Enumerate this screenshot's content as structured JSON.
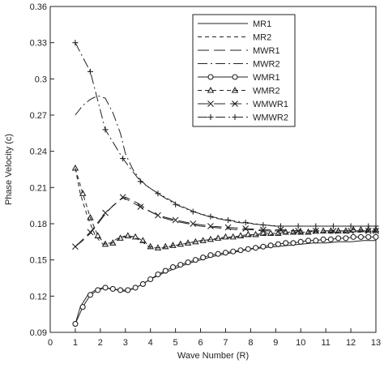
{
  "chart_data": {
    "type": "line",
    "title": "",
    "xlabel": "Wave Number (R)",
    "ylabel": "Phase Velocity (c)",
    "xlim": [
      0,
      13
    ],
    "ylim": [
      0.09,
      0.36
    ],
    "x_ticks": [
      "0",
      "1",
      "2",
      "3",
      "4",
      "5",
      "6",
      "7",
      "8",
      "9",
      "10",
      "11",
      "12",
      "13"
    ],
    "y_ticks": [
      "0.09",
      "0.12",
      "0.15",
      "0.18",
      "0.21",
      "0.24",
      "0.27",
      "0.3",
      "0.33",
      "0.36"
    ],
    "grid": false,
    "legend_position": "top-right",
    "series": [
      {
        "name": "MR1",
        "style": "solid",
        "marker": "none",
        "color": "#222222",
        "x": [
          1.0,
          1.2,
          1.5,
          1.8,
          2.1,
          2.4,
          2.7,
          3.0,
          3.3,
          3.6,
          4.0,
          4.5,
          5.0,
          5.5,
          6.0,
          6.5,
          7.0,
          7.5,
          8.0,
          8.5,
          9.0,
          9.5,
          10.0,
          10.5,
          11.0,
          11.5,
          12.0,
          12.5,
          13.0
        ],
        "y": [
          0.097,
          0.111,
          0.121,
          0.125,
          0.127,
          0.126,
          0.125,
          0.124,
          0.126,
          0.129,
          0.134,
          0.139,
          0.143,
          0.147,
          0.15,
          0.153,
          0.155,
          0.157,
          0.159,
          0.16,
          0.161,
          0.162,
          0.163,
          0.164,
          0.164,
          0.165,
          0.165,
          0.166,
          0.166
        ]
      },
      {
        "name": "MR2",
        "style": "dashed",
        "marker": "none",
        "color": "#222222",
        "x": [
          1.0,
          1.2,
          1.5,
          1.8,
          2.1,
          2.4,
          2.7,
          3.0,
          3.3,
          3.6,
          4.0,
          4.5,
          5.0,
          5.5,
          6.0,
          6.5,
          7.0,
          7.5,
          8.0,
          8.5,
          9.0,
          9.5,
          10.0,
          10.5,
          11.0,
          11.5,
          12.0,
          12.5,
          13.0
        ],
        "y": [
          0.226,
          0.205,
          0.185,
          0.17,
          0.163,
          0.164,
          0.168,
          0.17,
          0.169,
          0.166,
          0.16,
          0.16,
          0.162,
          0.164,
          0.166,
          0.167,
          0.168,
          0.169,
          0.17,
          0.171,
          0.171,
          0.172,
          0.172,
          0.172,
          0.173,
          0.173,
          0.173,
          0.173,
          0.173
        ]
      },
      {
        "name": "MWR1",
        "style": "long-dash",
        "marker": "none",
        "color": "#222222",
        "x": [
          1.0,
          1.3,
          1.6,
          1.9,
          2.2,
          2.5,
          2.8,
          3.0,
          3.5,
          4.0,
          4.5,
          5.0,
          5.5,
          6.0,
          6.5,
          7.0,
          7.5,
          8.0,
          8.5,
          9.0,
          9.5,
          10.0,
          10.5,
          11.0,
          11.5,
          12.0,
          12.5,
          13.0
        ],
        "y": [
          0.161,
          0.166,
          0.172,
          0.18,
          0.188,
          0.195,
          0.2,
          0.202,
          0.197,
          0.19,
          0.185,
          0.182,
          0.18,
          0.178,
          0.177,
          0.176,
          0.175,
          0.175,
          0.174,
          0.174,
          0.174,
          0.174,
          0.174,
          0.174,
          0.174,
          0.174,
          0.174,
          0.174
        ]
      },
      {
        "name": "MWR2",
        "style": "dash-dot",
        "marker": "none",
        "color": "#222222",
        "x": [
          1.0,
          1.3,
          1.6,
          1.9,
          2.2,
          2.5,
          2.8,
          3.0,
          3.3,
          3.6,
          4.0,
          4.5,
          5.0,
          5.5,
          6.0,
          6.5,
          7.0,
          7.5,
          8.0,
          8.5,
          9.0,
          9.5,
          10.0,
          10.5,
          11.0,
          11.5,
          12.0,
          12.5,
          13.0
        ],
        "y": [
          0.27,
          0.278,
          0.283,
          0.286,
          0.284,
          0.272,
          0.255,
          0.238,
          0.225,
          0.216,
          0.209,
          0.203,
          0.197,
          0.192,
          0.188,
          0.185,
          0.183,
          0.181,
          0.18,
          0.179,
          0.178,
          0.178,
          0.178,
          0.178,
          0.178,
          0.178,
          0.178,
          0.178,
          0.178
        ]
      },
      {
        "name": "WMR1",
        "style": "solid",
        "marker": "circle",
        "color": "#222222",
        "x": [
          1.0,
          1.3,
          1.6,
          1.9,
          2.2,
          2.5,
          2.8,
          3.1,
          3.4,
          3.7,
          4.0,
          4.3,
          4.6,
          4.9,
          5.2,
          5.5,
          5.8,
          6.1,
          6.4,
          6.7,
          7.0,
          7.3,
          7.6,
          7.9,
          8.2,
          8.5,
          8.8,
          9.1,
          9.4,
          9.7,
          10.0,
          10.3,
          10.6,
          10.9,
          11.2,
          11.5,
          11.8,
          12.1,
          12.4,
          12.7,
          13.0
        ],
        "y": [
          0.097,
          0.111,
          0.121,
          0.125,
          0.127,
          0.126,
          0.125,
          0.125,
          0.127,
          0.13,
          0.134,
          0.138,
          0.141,
          0.144,
          0.146,
          0.148,
          0.15,
          0.152,
          0.154,
          0.155,
          0.156,
          0.157,
          0.158,
          0.159,
          0.16,
          0.161,
          0.162,
          0.163,
          0.164,
          0.164,
          0.165,
          0.166,
          0.166,
          0.167,
          0.167,
          0.168,
          0.168,
          0.169,
          0.169,
          0.169,
          0.169
        ]
      },
      {
        "name": "WMR2",
        "style": "dashed",
        "marker": "triangle",
        "color": "#222222",
        "x": [
          1.0,
          1.3,
          1.6,
          1.9,
          2.2,
          2.5,
          2.8,
          3.1,
          3.4,
          3.7,
          4.0,
          4.3,
          4.6,
          4.9,
          5.2,
          5.5,
          5.8,
          6.1,
          6.4,
          6.7,
          7.0,
          7.3,
          7.6,
          7.9,
          8.2,
          8.5,
          8.8,
          9.1,
          9.4,
          9.7,
          10.0,
          10.3,
          10.6,
          10.9,
          11.2,
          11.5,
          11.8,
          12.1,
          12.4,
          12.7,
          13.0
        ],
        "y": [
          0.226,
          0.205,
          0.185,
          0.17,
          0.163,
          0.164,
          0.168,
          0.17,
          0.169,
          0.166,
          0.161,
          0.16,
          0.161,
          0.162,
          0.163,
          0.164,
          0.165,
          0.166,
          0.167,
          0.168,
          0.169,
          0.169,
          0.17,
          0.171,
          0.171,
          0.172,
          0.172,
          0.172,
          0.173,
          0.173,
          0.173,
          0.173,
          0.174,
          0.174,
          0.174,
          0.174,
          0.174,
          0.175,
          0.175,
          0.175,
          0.175
        ]
      },
      {
        "name": "WMWR1",
        "style": "long-dash",
        "marker": "x",
        "color": "#222222",
        "x": [
          1.0,
          1.6,
          2.2,
          2.9,
          3.6,
          4.3,
          5.0,
          5.7,
          6.4,
          7.1,
          7.8,
          8.5,
          9.2,
          9.9,
          10.6,
          11.3,
          12.0,
          12.7,
          13.0
        ],
        "y": [
          0.161,
          0.173,
          0.189,
          0.202,
          0.194,
          0.187,
          0.183,
          0.18,
          0.178,
          0.177,
          0.176,
          0.175,
          0.175,
          0.174,
          0.174,
          0.174,
          0.174,
          0.174,
          0.174
        ]
      },
      {
        "name": "WMWR2",
        "style": "dash-dot",
        "marker": "plus",
        "color": "#222222",
        "x": [
          1.0,
          1.6,
          2.2,
          2.9,
          3.6,
          4.3,
          5.0,
          5.7,
          6.4,
          7.1,
          7.8,
          8.5,
          9.2,
          9.9,
          10.6,
          11.3,
          12.0,
          12.7,
          13.0
        ],
        "y": [
          0.33,
          0.306,
          0.258,
          0.234,
          0.215,
          0.205,
          0.196,
          0.19,
          0.186,
          0.183,
          0.181,
          0.179,
          0.178,
          0.178,
          0.178,
          0.178,
          0.178,
          0.178,
          0.178
        ]
      }
    ]
  }
}
